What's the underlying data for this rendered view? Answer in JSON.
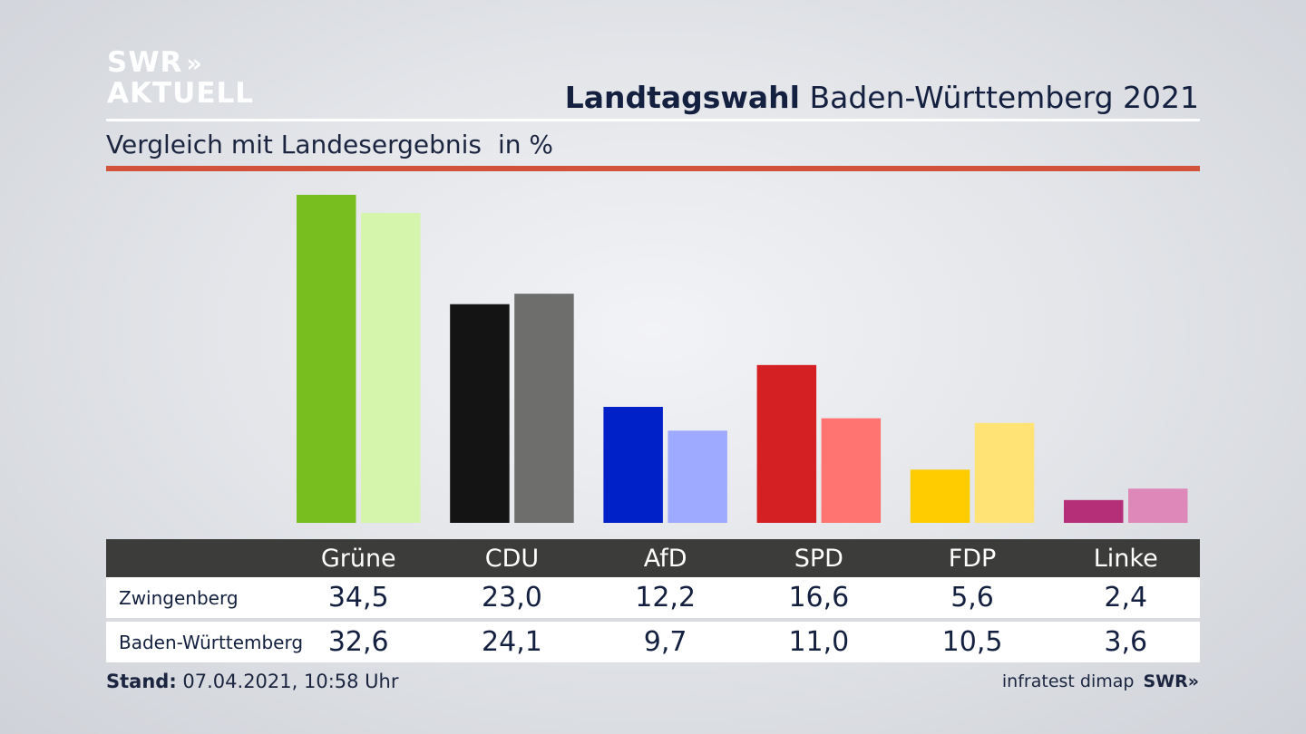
{
  "header": {
    "logo_line1": "SWR",
    "logo_arrows": "»",
    "logo_line2": "AKTUELL",
    "title_bold": "Landtagswahl",
    "title_rest": " Baden-Württemberg 2021",
    "subtitle": "Vergleich mit Landesergebnis",
    "unit": "in %"
  },
  "chart_data": {
    "type": "bar",
    "categories": [
      "Grüne",
      "CDU",
      "AfD",
      "SPD",
      "FDP",
      "Linke"
    ],
    "series": [
      {
        "name": "Zwingenberg",
        "values": [
          34.5,
          23.0,
          12.2,
          16.6,
          5.6,
          2.4
        ],
        "display": [
          "34,5",
          "23,0",
          "12,2",
          "16,6",
          "5,6",
          "2,4"
        ]
      },
      {
        "name": "Baden-Württemberg",
        "values": [
          32.6,
          24.1,
          9.7,
          11.0,
          10.5,
          3.6
        ],
        "display": [
          "32,6",
          "24,1",
          "9,7",
          "11,0",
          "10,5",
          "3,6"
        ]
      }
    ],
    "colors": {
      "Zwingenberg": [
        "#78be1e",
        "#141414",
        "#0020c8",
        "#d52023",
        "#ffcc00",
        "#b52f78"
      ],
      "Baden-Württemberg": [
        "#d5f5ad",
        "#6e6e6c",
        "#9eaaff",
        "#ff7470",
        "#ffe375",
        "#dd88b8"
      ]
    },
    "ylim": [
      0,
      35
    ],
    "legend": "table-below"
  },
  "footer": {
    "stand_label": "Stand:",
    "stand_value": " 07.04.2021, 10:58 Uhr",
    "source": "infratest dimap",
    "source_brand": "SWR»"
  }
}
